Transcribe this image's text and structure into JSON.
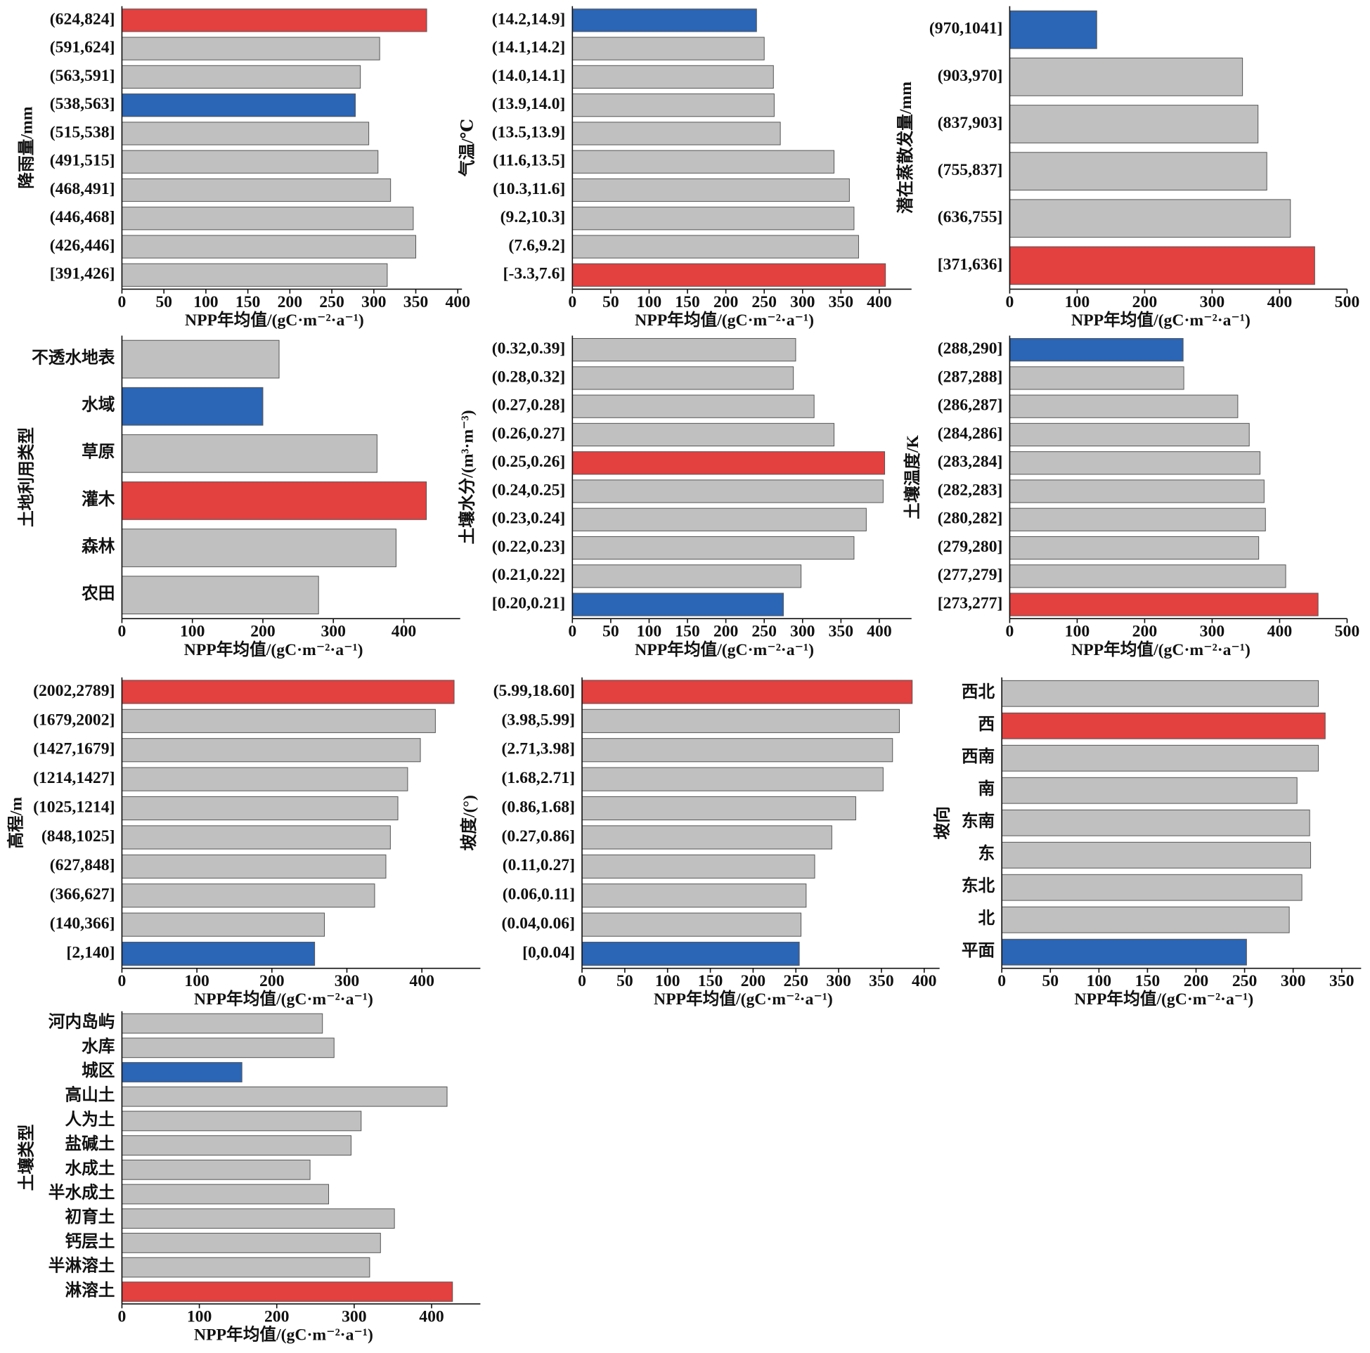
{
  "chart_data": [
    {
      "type": "bar",
      "orientation": "horizontal",
      "ylabel": "降雨量/mm",
      "xlabel": "NPP年均值/(gC·m⁻²·a⁻¹)",
      "categories": [
        "(624,824]",
        "(591,624]",
        "(563,591]",
        "(538,563]",
        "(515,538]",
        "(491,515]",
        "(468,491]",
        "(446,468]",
        "(426,446]",
        "[391,426]"
      ],
      "values": [
        363,
        307,
        284,
        278,
        294,
        305,
        320,
        347,
        350,
        316
      ],
      "colors": [
        "#e34040",
        "#c0c0c0",
        "#c0c0c0",
        "#2b65b5",
        "#c0c0c0",
        "#c0c0c0",
        "#c0c0c0",
        "#c0c0c0",
        "#c0c0c0",
        "#c0c0c0"
      ],
      "xlim": [
        0,
        405
      ],
      "xticks": [
        0,
        50,
        100,
        150,
        200,
        250,
        300,
        350,
        400
      ],
      "grid": false
    },
    {
      "type": "bar",
      "orientation": "horizontal",
      "ylabel": "气温/℃",
      "xlabel": "NPP年均值/(gC·m⁻²·a⁻¹)",
      "categories": [
        "(14.2,14.9]",
        "(14.1,14.2]",
        "(14.0,14.1]",
        "(13.9,14.0]",
        "(13.5,13.9]",
        "(11.6,13.5]",
        "(10.3,11.6]",
        "(9.2,10.3]",
        "(7.6,9.2]",
        "[-3.3,7.6]"
      ],
      "values": [
        240,
        250,
        262,
        263,
        271,
        341,
        361,
        367,
        373,
        408
      ],
      "colors": [
        "#2b65b5",
        "#c0c0c0",
        "#c0c0c0",
        "#c0c0c0",
        "#c0c0c0",
        "#c0c0c0",
        "#c0c0c0",
        "#c0c0c0",
        "#c0c0c0",
        "#e34040"
      ],
      "xlim": [
        0,
        442
      ],
      "xticks": [
        0,
        50,
        100,
        150,
        200,
        250,
        300,
        350,
        400
      ],
      "grid": false
    },
    {
      "type": "bar",
      "orientation": "horizontal",
      "ylabel": "潜在蒸散发量/mm",
      "xlabel": "NPP年均值/(gC·m⁻²·a⁻¹)",
      "categories": [
        "(970,1041]",
        "(903,970]",
        "(837,903]",
        "(755,837]",
        "(636,755]",
        "[371,636]"
      ],
      "values": [
        129,
        345,
        368,
        381,
        416,
        452
      ],
      "colors": [
        "#2b65b5",
        "#c0c0c0",
        "#c0c0c0",
        "#c0c0c0",
        "#c0c0c0",
        "#e34040"
      ],
      "xlim": [
        0,
        500
      ],
      "xticks": [
        0,
        100,
        200,
        300,
        400,
        500
      ],
      "grid": false
    },
    {
      "type": "bar",
      "orientation": "horizontal",
      "ylabel": "土地利用类型",
      "xlabel": "NPP年均值/(gC·m⁻²·a⁻¹)",
      "categories": [
        "不透水地表",
        "水域",
        "草原",
        "灌木",
        "森林",
        "农田"
      ],
      "values": [
        223,
        200,
        362,
        432,
        389,
        279
      ],
      "colors": [
        "#c0c0c0",
        "#2b65b5",
        "#c0c0c0",
        "#e34040",
        "#c0c0c0",
        "#c0c0c0"
      ],
      "xlim": [
        0,
        480
      ],
      "xticks": [
        0,
        100,
        200,
        300,
        400
      ],
      "grid": false
    },
    {
      "type": "bar",
      "orientation": "horizontal",
      "ylabel": "土壤水分/(m³·m⁻³)",
      "xlabel": "NPP年均值/(gC·m⁻²·a⁻¹)",
      "categories": [
        "(0.32,0.39]",
        "(0.28,0.32]",
        "(0.27,0.28]",
        "(0.26,0.27]",
        "(0.25,0.26]",
        "(0.24,0.25]",
        "(0.23,0.24]",
        "(0.22,0.23]",
        "(0.21,0.22]",
        "[0.20,0.21]"
      ],
      "values": [
        291,
        288,
        315,
        341,
        407,
        405,
        383,
        367,
        298,
        275
      ],
      "colors": [
        "#c0c0c0",
        "#c0c0c0",
        "#c0c0c0",
        "#c0c0c0",
        "#e34040",
        "#c0c0c0",
        "#c0c0c0",
        "#c0c0c0",
        "#c0c0c0",
        "#2b65b5"
      ],
      "xlim": [
        0,
        442
      ],
      "xticks": [
        0,
        50,
        100,
        150,
        200,
        250,
        300,
        350,
        400
      ],
      "grid": false
    },
    {
      "type": "bar",
      "orientation": "horizontal",
      "ylabel": "土壤温度/K",
      "xlabel": "NPP年均值/(gC·m⁻²·a⁻¹)",
      "categories": [
        "(288,290]",
        "(287,288]",
        "(286,287]",
        "(284,286]",
        "(283,284]",
        "(282,283]",
        "(280,282]",
        "(279,280]",
        "(277,279]",
        "[273,277]"
      ],
      "values": [
        257,
        258,
        338,
        355,
        371,
        377,
        379,
        369,
        409,
        457
      ],
      "colors": [
        "#2b65b5",
        "#c0c0c0",
        "#c0c0c0",
        "#c0c0c0",
        "#c0c0c0",
        "#c0c0c0",
        "#c0c0c0",
        "#c0c0c0",
        "#c0c0c0",
        "#e34040"
      ],
      "xlim": [
        0,
        500
      ],
      "xticks": [
        0,
        100,
        200,
        300,
        400,
        500
      ],
      "grid": false
    },
    {
      "type": "bar",
      "orientation": "horizontal",
      "ylabel": "高程/m",
      "xlabel": "NPP年均值/(gC·m⁻²·a⁻¹)",
      "categories": [
        "(2002,2789]",
        "(1679,2002]",
        "(1427,1679]",
        "(1214,1427]",
        "(1025,1214]",
        "(848,1025]",
        "(627,848]",
        "(366,627]",
        "(140,366]",
        "[2,140]"
      ],
      "values": [
        443,
        418,
        398,
        381,
        368,
        358,
        352,
        337,
        270,
        257
      ],
      "colors": [
        "#e34040",
        "#c0c0c0",
        "#c0c0c0",
        "#c0c0c0",
        "#c0c0c0",
        "#c0c0c0",
        "#c0c0c0",
        "#c0c0c0",
        "#c0c0c0",
        "#2b65b5"
      ],
      "xlim": [
        0,
        478
      ],
      "xticks": [
        0,
        100,
        200,
        300,
        400
      ],
      "grid": false
    },
    {
      "type": "bar",
      "orientation": "horizontal",
      "ylabel": "坡度/(°)",
      "xlabel": "NPP年均值/(gC·m⁻²·a⁻¹)",
      "categories": [
        "(5.99,18.60]",
        "(3.98,5.99]",
        "(2.71,3.98]",
        "(1.68,2.71]",
        "(0.86,1.68]",
        "(0.27,0.86]",
        "(0.11,0.27]",
        "(0.06,0.11]",
        "(0.04,0.06]",
        "[0,0.04]"
      ],
      "values": [
        386,
        371,
        363,
        352,
        320,
        292,
        272,
        262,
        256,
        254
      ],
      "colors": [
        "#e34040",
        "#c0c0c0",
        "#c0c0c0",
        "#c0c0c0",
        "#c0c0c0",
        "#c0c0c0",
        "#c0c0c0",
        "#c0c0c0",
        "#c0c0c0",
        "#2b65b5"
      ],
      "xlim": [
        0,
        418
      ],
      "xticks": [
        0,
        50,
        100,
        150,
        200,
        250,
        300,
        350,
        400
      ],
      "grid": false
    },
    {
      "type": "bar",
      "orientation": "horizontal",
      "ylabel": "坡向",
      "xlabel": "NPP年均值/(gC·m⁻²·a⁻¹)",
      "categories": [
        "西北",
        "西",
        "西南",
        "南",
        "东南",
        "东",
        "东北",
        "北",
        "平面"
      ],
      "values": [
        326,
        333,
        326,
        304,
        317,
        318,
        309,
        296,
        252
      ],
      "colors": [
        "#c0c0c0",
        "#e34040",
        "#c0c0c0",
        "#c0c0c0",
        "#c0c0c0",
        "#c0c0c0",
        "#c0c0c0",
        "#c0c0c0",
        "#2b65b5"
      ],
      "xlim": [
        0,
        370
      ],
      "xticks": [
        0,
        50,
        100,
        150,
        200,
        250,
        300,
        350
      ],
      "grid": false
    },
    {
      "type": "bar",
      "orientation": "horizontal",
      "ylabel": "土壤类型",
      "xlabel": "NPP年均值/(gC·m⁻²·a⁻¹)",
      "categories": [
        "河内岛屿",
        "水库",
        "城区",
        "高山土",
        "人为土",
        "盐碱土",
        "水成土",
        "半水成土",
        "初育土",
        "钙层土",
        "半淋溶土",
        "淋溶土"
      ],
      "values": [
        259,
        274,
        155,
        420,
        309,
        296,
        243,
        267,
        352,
        334,
        320,
        427
      ],
      "colors": [
        "#c0c0c0",
        "#c0c0c0",
        "#2b65b5",
        "#c0c0c0",
        "#c0c0c0",
        "#c0c0c0",
        "#c0c0c0",
        "#c0c0c0",
        "#c0c0c0",
        "#c0c0c0",
        "#c0c0c0",
        "#e34040"
      ],
      "xlim": [
        0,
        463
      ],
      "xticks": [
        0,
        100,
        200,
        300,
        400
      ],
      "grid": false
    }
  ]
}
